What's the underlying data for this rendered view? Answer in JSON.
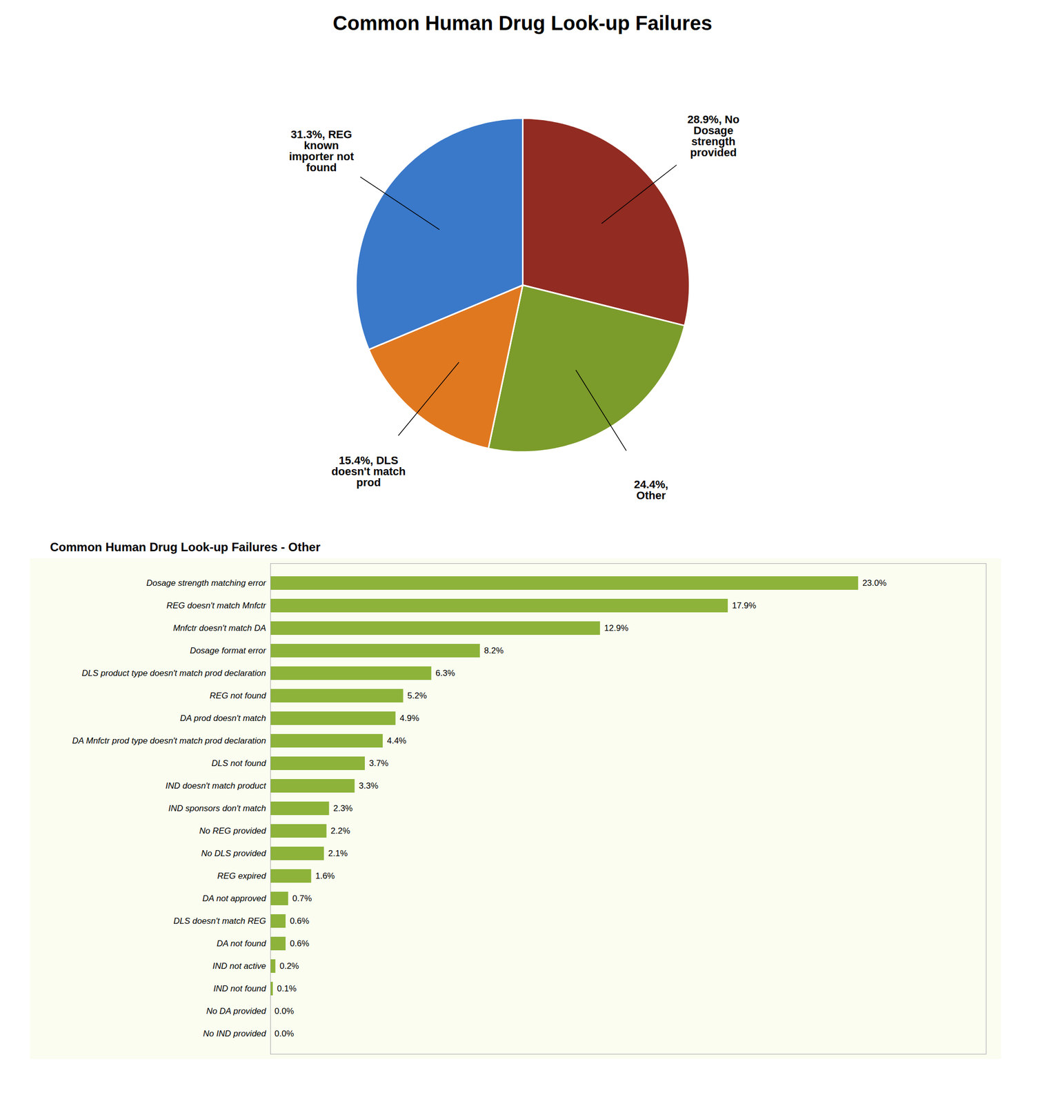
{
  "chart_data": [
    {
      "type": "pie",
      "title": "Common Human Drug Look-up Failures",
      "values": [
        28.9,
        24.4,
        15.4,
        31.3
      ],
      "colors": [
        "#922B21",
        "#7B9B2A",
        "#E07820",
        "#3A78C9"
      ],
      "data_labels": true,
      "value_labels": [
        "28.9%, No\nDosage\nstrength\nprovided",
        "24.4%,\nOther",
        "15.4%, DLS\ndoesn't match\nprod",
        "31.3%, REG\nknown\nimporter not\nfound"
      ]
    },
    {
      "type": "bar",
      "title": "Common Human Drug Look-up Failures - Other",
      "orientation": "horizontal",
      "categories": [
        "Dosage strength matching error",
        "REG doesn't match Mnfctr",
        "Mnfctr doesn't match DA",
        "Dosage format error",
        "DLS product type doesn't match prod declaration",
        "REG not found",
        "DA prod doesn't match",
        "DA Mnfctr prod type doesn't match prod declaration",
        "DLS not found",
        "IND doesn't match product",
        "IND sponsors don't match",
        "No REG provided",
        "No DLS provided",
        "REG expired",
        "DA not approved",
        "DLS doesn't match REG",
        "DA not found",
        "IND not active",
        "IND not found",
        "No DA provided",
        "No IND provided"
      ],
      "values": [
        23.0,
        17.9,
        12.9,
        8.2,
        6.3,
        5.2,
        4.9,
        4.4,
        3.7,
        3.3,
        2.3,
        2.2,
        2.1,
        1.6,
        0.7,
        0.6,
        0.6,
        0.2,
        0.1,
        0.0,
        0.0
      ],
      "value_labels": [
        "23.0%",
        "17.9%",
        "12.9%",
        "8.2%",
        "6.3%",
        "5.2%",
        "4.9%",
        "4.4%",
        "3.7%",
        "3.3%",
        "2.3%",
        "2.2%",
        "2.1%",
        "1.6%",
        "0.7%",
        "0.6%",
        "0.6%",
        "0.2%",
        "0.1%",
        "0.0%",
        "0.0%"
      ],
      "data_labels": true,
      "color": "#8DB33A",
      "xlim": [
        0,
        28
      ],
      "tick_labels": "y",
      "grid": false
    }
  ]
}
